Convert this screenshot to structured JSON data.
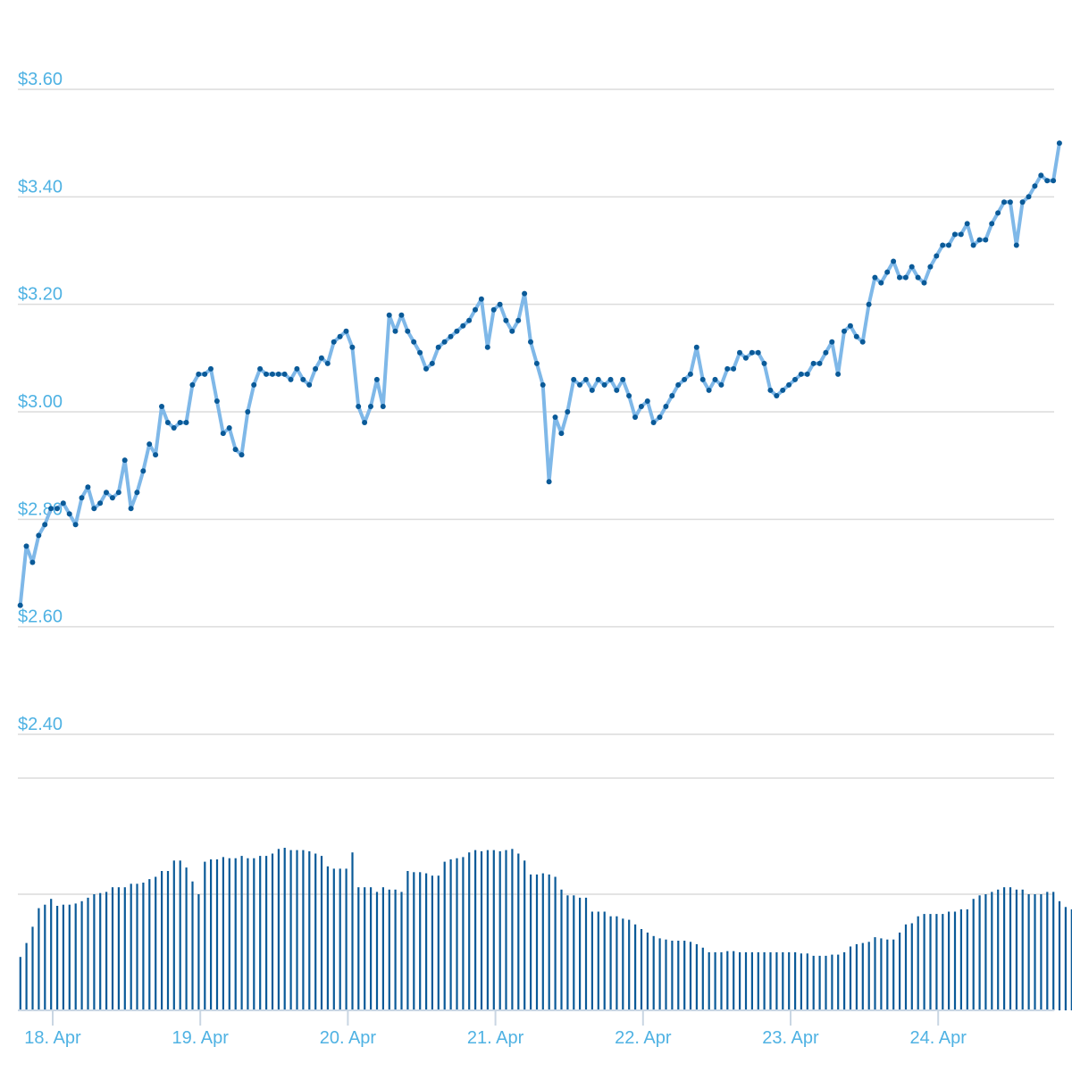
{
  "chart_data": [
    {
      "type": "line",
      "title": "",
      "xlabel": "",
      "ylabel": "",
      "ylim": [
        2.28,
        3.74
      ],
      "y_ticks": [
        {
          "value": 3.6,
          "label": "$3.60"
        },
        {
          "value": 3.4,
          "label": "$3.40"
        },
        {
          "value": 3.2,
          "label": "$3.20"
        },
        {
          "value": 3.0,
          "label": "$3.00"
        },
        {
          "value": 2.8,
          "label": "$2.80"
        },
        {
          "value": 2.6,
          "label": "$2.60"
        },
        {
          "value": 2.4,
          "label": "$2.40"
        }
      ],
      "x_ticks": [
        {
          "day": 18,
          "label": "18. Apr"
        },
        {
          "day": 19,
          "label": "19. Apr"
        },
        {
          "day": 20,
          "label": "20. Apr"
        },
        {
          "day": 21,
          "label": "21. Apr"
        },
        {
          "day": 22,
          "label": "22. Apr"
        },
        {
          "day": 23,
          "label": "23. Apr"
        },
        {
          "day": 24,
          "label": "24. Apr"
        }
      ],
      "grid": true,
      "line_color": "#7fb8e8",
      "marker_color": "#0a5a98",
      "series": [
        {
          "x_start_day": 17.78,
          "x_step_hours": 1,
          "values": [
            2.64,
            2.75,
            2.72,
            2.77,
            2.79,
            2.82,
            2.82,
            2.83,
            2.81,
            2.79,
            2.84,
            2.86,
            2.82,
            2.83,
            2.85,
            2.84,
            2.85,
            2.91,
            2.82,
            2.85,
            2.89,
            2.94,
            2.92,
            3.01,
            2.98,
            2.97,
            2.98,
            2.98,
            3.05,
            3.07,
            3.07,
            3.08,
            3.02,
            2.96,
            2.97,
            2.93,
            2.92,
            3.0,
            3.05,
            3.08,
            3.07,
            3.07,
            3.07,
            3.07,
            3.06,
            3.08,
            3.06,
            3.05,
            3.08,
            3.1,
            3.09,
            3.13,
            3.14,
            3.15,
            3.12,
            3.01,
            2.98,
            3.01,
            3.06,
            3.01,
            3.18,
            3.15,
            3.18,
            3.15,
            3.13,
            3.11,
            3.08,
            3.09,
            3.12,
            3.13,
            3.14,
            3.15,
            3.16,
            3.17,
            3.19,
            3.21,
            3.12,
            3.19,
            3.2,
            3.17,
            3.15,
            3.17,
            3.22,
            3.13,
            3.09,
            3.05,
            2.87,
            2.99,
            2.96,
            3.0,
            3.06,
            3.05,
            3.06,
            3.04,
            3.06,
            3.05,
            3.06,
            3.04,
            3.06,
            3.03,
            2.99,
            3.01,
            3.02,
            2.98,
            2.99,
            3.01,
            3.03,
            3.05,
            3.06,
            3.07,
            3.12,
            3.06,
            3.04,
            3.06,
            3.05,
            3.08,
            3.08,
            3.11,
            3.1,
            3.11,
            3.11,
            3.09,
            3.04,
            3.03,
            3.04,
            3.05,
            3.06,
            3.07,
            3.07,
            3.09,
            3.09,
            3.11,
            3.13,
            3.07,
            3.15,
            3.16,
            3.14,
            3.13,
            3.2,
            3.25,
            3.24,
            3.26,
            3.28,
            3.25,
            3.25,
            3.27,
            3.25,
            3.24,
            3.27,
            3.29,
            3.31,
            3.31,
            3.33,
            3.33,
            3.35,
            3.31,
            3.32,
            3.32,
            3.35,
            3.37,
            3.39,
            3.39,
            3.31,
            3.39,
            3.4,
            3.42,
            3.44,
            3.43,
            3.43,
            3.5
          ]
        }
      ]
    },
    {
      "type": "bar",
      "title": "",
      "xlabel": "",
      "ylabel": "",
      "bar_color": "#0a5a98",
      "grid": true,
      "values": [
        0.46,
        0.58,
        0.72,
        0.88,
        0.91,
        0.96,
        0.9,
        0.91,
        0.91,
        0.92,
        0.94,
        0.97,
        1.0,
        1.01,
        1.02,
        1.06,
        1.06,
        1.06,
        1.09,
        1.09,
        1.1,
        1.13,
        1.15,
        1.2,
        1.2,
        1.29,
        1.29,
        1.23,
        1.11,
        1.0,
        1.28,
        1.3,
        1.3,
        1.32,
        1.31,
        1.31,
        1.33,
        1.31,
        1.31,
        1.33,
        1.33,
        1.35,
        1.39,
        1.4,
        1.38,
        1.38,
        1.38,
        1.37,
        1.35,
        1.33,
        1.24,
        1.22,
        1.22,
        1.22,
        1.36,
        1.06,
        1.06,
        1.06,
        1.02,
        1.06,
        1.04,
        1.04,
        1.02,
        1.2,
        1.19,
        1.19,
        1.18,
        1.16,
        1.16,
        1.28,
        1.3,
        1.31,
        1.32,
        1.36,
        1.38,
        1.37,
        1.38,
        1.38,
        1.37,
        1.38,
        1.39,
        1.35,
        1.29,
        1.17,
        1.17,
        1.18,
        1.17,
        1.15,
        1.04,
        0.99,
        0.99,
        0.97,
        0.97,
        0.85,
        0.85,
        0.85,
        0.81,
        0.81,
        0.79,
        0.78,
        0.74,
        0.7,
        0.67,
        0.64,
        0.62,
        0.61,
        0.6,
        0.6,
        0.6,
        0.59,
        0.57,
        0.54,
        0.5,
        0.5,
        0.5,
        0.51,
        0.51,
        0.5,
        0.5,
        0.5,
        0.5,
        0.5,
        0.5,
        0.5,
        0.5,
        0.5,
        0.5,
        0.49,
        0.49,
        0.47,
        0.47,
        0.47,
        0.48,
        0.48,
        0.5,
        0.55,
        0.57,
        0.58,
        0.59,
        0.63,
        0.62,
        0.61,
        0.61,
        0.67,
        0.74,
        0.75,
        0.81,
        0.83,
        0.83,
        0.83,
        0.83,
        0.85,
        0.85,
        0.87,
        0.87,
        0.96,
        0.99,
        1.0,
        1.02,
        1.04,
        1.06,
        1.06,
        1.04,
        1.04,
        1.0,
        1.0,
        1.0,
        1.02,
        1.02,
        0.94,
        0.89,
        0.87,
        0.87,
        0.89,
        0.89,
        0.9
      ]
    }
  ]
}
